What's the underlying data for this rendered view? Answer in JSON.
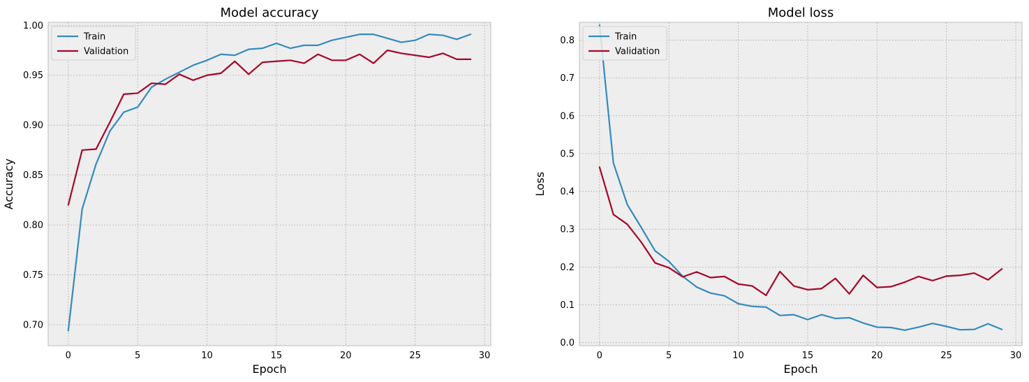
{
  "chart_data": [
    {
      "type": "line",
      "title": "Model accuracy",
      "xlabel": "Epoch",
      "ylabel": "Accuracy",
      "xlim": [
        -1.45,
        30.45
      ],
      "ylim": [
        0.679,
        1.003
      ],
      "xticks": [
        0,
        5,
        10,
        15,
        20,
        25,
        30
      ],
      "xtick_labels": [
        "0",
        "5",
        "10",
        "15",
        "20",
        "25",
        "30"
      ],
      "yticks": [
        0.7,
        0.75,
        0.8,
        0.85,
        0.9,
        0.95,
        1.0
      ],
      "ytick_labels": [
        "0.70",
        "0.75",
        "0.80",
        "0.85",
        "0.90",
        "0.95",
        "1.00"
      ],
      "grid": true,
      "legend": "upper left",
      "x": [
        0,
        1,
        2,
        3,
        4,
        5,
        6,
        7,
        8,
        9,
        10,
        11,
        12,
        13,
        14,
        15,
        16,
        17,
        18,
        19,
        20,
        21,
        22,
        23,
        24,
        25,
        26,
        27,
        28,
        29
      ],
      "series": [
        {
          "name": "Train",
          "color": "#348ABD",
          "values": [
            0.694,
            0.816,
            0.861,
            0.894,
            0.913,
            0.918,
            0.938,
            0.946,
            0.953,
            0.96,
            0.965,
            0.971,
            0.97,
            0.976,
            0.977,
            0.982,
            0.977,
            0.98,
            0.98,
            0.985,
            0.988,
            0.991,
            0.991,
            0.987,
            0.983,
            0.985,
            0.991,
            0.99,
            0.986,
            0.991
          ]
        },
        {
          "name": "Validation",
          "color": "#A60628",
          "values": [
            0.82,
            0.875,
            0.876,
            0.903,
            0.931,
            0.932,
            0.942,
            0.941,
            0.951,
            0.945,
            0.95,
            0.952,
            0.964,
            0.951,
            0.963,
            0.964,
            0.965,
            0.962,
            0.971,
            0.965,
            0.965,
            0.971,
            0.962,
            0.975,
            0.972,
            0.97,
            0.968,
            0.972,
            0.966,
            0.966
          ]
        }
      ]
    },
    {
      "type": "line",
      "title": "Model loss",
      "xlabel": "Epoch",
      "ylabel": "Loss",
      "xlim": [
        -1.45,
        30.45
      ],
      "ylim": [
        -0.008,
        0.847
      ],
      "xticks": [
        0,
        5,
        10,
        15,
        20,
        25,
        30
      ],
      "xtick_labels": [
        "0",
        "5",
        "10",
        "15",
        "20",
        "25",
        "30"
      ],
      "yticks": [
        0.0,
        0.1,
        0.2,
        0.3,
        0.4,
        0.5,
        0.6,
        0.7,
        0.8
      ],
      "ytick_labels": [
        "0.0",
        "0.1",
        "0.2",
        "0.3",
        "0.4",
        "0.5",
        "0.6",
        "0.7",
        "0.8"
      ],
      "grid": true,
      "legend": "upper left",
      "x": [
        0,
        1,
        2,
        3,
        4,
        5,
        6,
        7,
        8,
        9,
        10,
        11,
        12,
        13,
        14,
        15,
        16,
        17,
        18,
        19,
        20,
        21,
        22,
        23,
        24,
        25,
        26,
        27,
        28,
        29
      ],
      "series": [
        {
          "name": "Train",
          "color": "#348ABD",
          "values": [
            0.84,
            0.475,
            0.365,
            0.305,
            0.243,
            0.215,
            0.175,
            0.147,
            0.131,
            0.124,
            0.103,
            0.096,
            0.094,
            0.072,
            0.074,
            0.061,
            0.074,
            0.064,
            0.066,
            0.052,
            0.041,
            0.04,
            0.033,
            0.041,
            0.051,
            0.043,
            0.034,
            0.035,
            0.05,
            0.035
          ]
        },
        {
          "name": "Validation",
          "color": "#A60628",
          "values": [
            0.464,
            0.339,
            0.313,
            0.266,
            0.211,
            0.198,
            0.174,
            0.187,
            0.172,
            0.175,
            0.155,
            0.15,
            0.125,
            0.188,
            0.15,
            0.14,
            0.143,
            0.17,
            0.129,
            0.178,
            0.146,
            0.148,
            0.16,
            0.175,
            0.164,
            0.176,
            0.178,
            0.184,
            0.166,
            0.195
          ]
        }
      ]
    }
  ]
}
